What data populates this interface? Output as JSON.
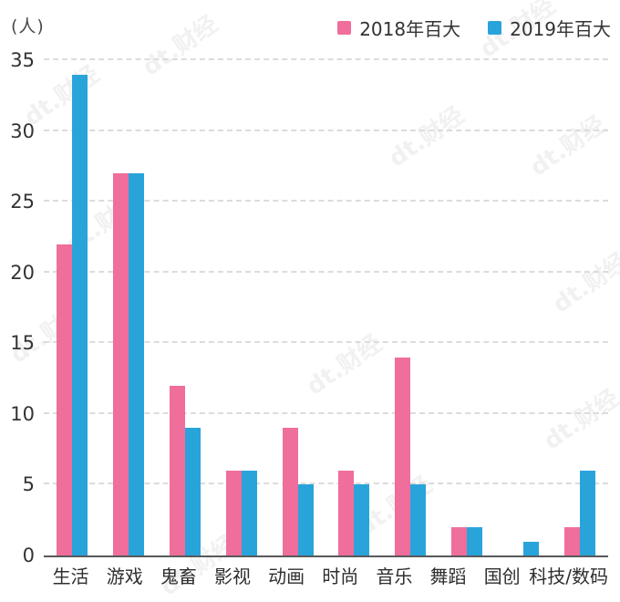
{
  "chart_data": {
    "type": "bar",
    "unit_label": "(人)",
    "categories": [
      "生活",
      "游戏",
      "鬼畜",
      "影视",
      "动画",
      "时尚",
      "音乐",
      "舞蹈",
      "国创",
      "科技/数码"
    ],
    "series": [
      {
        "name": "2018年百大",
        "color": "#EF6E9B",
        "values": [
          22,
          27,
          12,
          6,
          9,
          6,
          14,
          2,
          0,
          2
        ]
      },
      {
        "name": "2019年百大",
        "color": "#29A4DB",
        "values": [
          34,
          27,
          9,
          6,
          5,
          5,
          5,
          2,
          1,
          6
        ]
      }
    ],
    "ylim": [
      0,
      35
    ],
    "yticks": [
      0,
      5,
      10,
      15,
      20,
      25,
      30,
      35
    ],
    "grid": "dashed-horizontal",
    "legend_position": "top-right",
    "xlabel": "",
    "ylabel": "人"
  },
  "watermark": {
    "text": "dt.财经"
  },
  "colors": {
    "axis_line": "#58595b",
    "gridline": "#dcdcdc",
    "tick_text": "#333333"
  }
}
